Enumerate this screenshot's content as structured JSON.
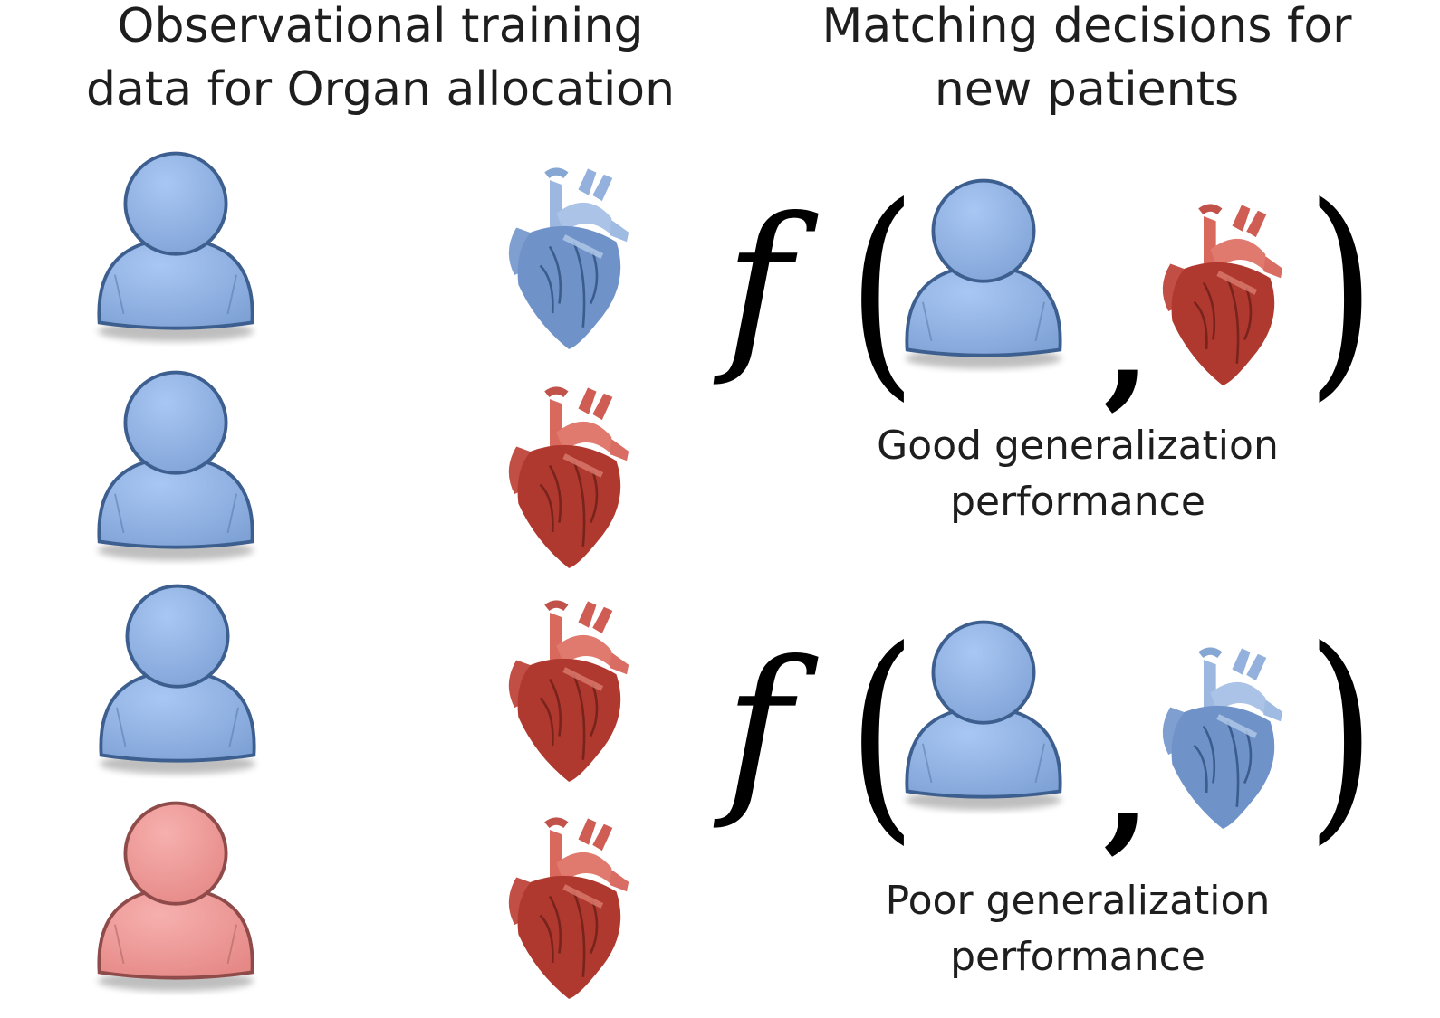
{
  "headings": {
    "left_line1": "Observational training",
    "left_line2": "data for Organ allocation",
    "right_line1": "Matching decisions for",
    "right_line2": "new patients"
  },
  "captions": {
    "good_line1": "Good generalization",
    "good_line2": "performance",
    "poor_line1": "Poor generalization",
    "poor_line2": "performance"
  },
  "formula": {
    "function_symbol": "f",
    "open_paren": "(",
    "comma": ",",
    "close_paren": ")"
  },
  "training_pairs": [
    {
      "patient": "blue",
      "heart": "blue"
    },
    {
      "patient": "blue",
      "heart": "red"
    },
    {
      "patient": "blue",
      "heart": "red"
    },
    {
      "patient": "red",
      "heart": "red"
    }
  ],
  "matches": [
    {
      "patient": "blue",
      "heart": "red",
      "outcome": "good"
    },
    {
      "patient": "blue",
      "heart": "blue",
      "outcome": "poor"
    }
  ],
  "colors": {
    "patient_blue": "#8fb2e4",
    "patient_red": "#ef9a98",
    "heart_red": "#b8413a",
    "heart_blue": "#7b9fd1"
  }
}
